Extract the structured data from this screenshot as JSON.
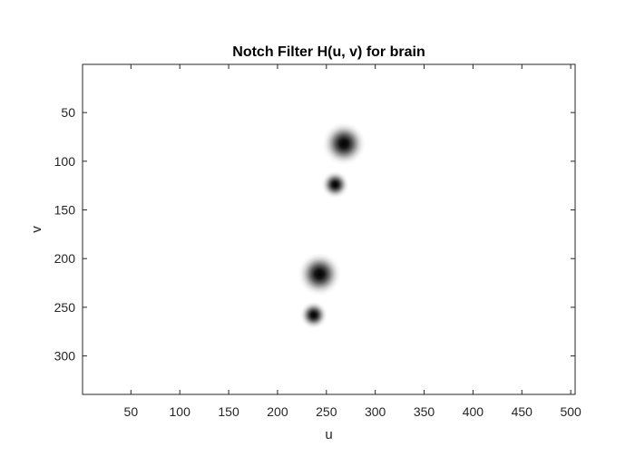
{
  "chart_data": {
    "type": "heatmap",
    "title": "Notch Filter H(u, v) for brain",
    "xlabel": "u",
    "ylabel": "v",
    "xlim": [
      0.5,
      504.5
    ],
    "ylim": [
      0.5,
      339.5
    ],
    "y_reversed": true,
    "xticks": [
      50,
      100,
      150,
      200,
      250,
      300,
      350,
      400,
      450,
      500
    ],
    "yticks": [
      50,
      100,
      150,
      200,
      250,
      300
    ],
    "colormap": "gray",
    "background_value": 1,
    "grid": false,
    "notches": [
      {
        "u": 268,
        "v": 82,
        "radius": 22
      },
      {
        "u": 259,
        "v": 124,
        "radius": 14
      },
      {
        "u": 243,
        "v": 216,
        "radius": 22
      },
      {
        "u": 237,
        "v": 258,
        "radius": 14
      }
    ]
  },
  "colors": {
    "axis": "#262626",
    "background": "#ffffff",
    "notch_center": "#000000"
  }
}
